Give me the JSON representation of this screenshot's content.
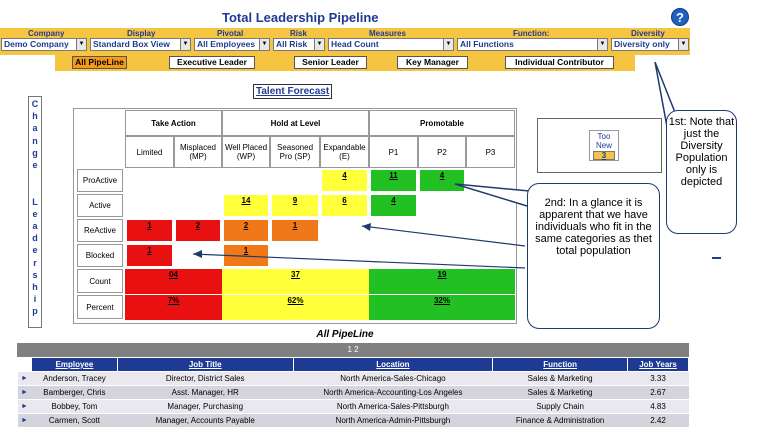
{
  "title": "Total Leadership Pipeline",
  "help_icon": "?",
  "filters": [
    {
      "label": "Company",
      "value": "Demo Company"
    },
    {
      "label": "Display",
      "value": "Standard Box View"
    },
    {
      "label": "Pivotal",
      "value": "All Employees"
    },
    {
      "label": "Risk",
      "value": "All Risk"
    },
    {
      "label": "Measures",
      "value": "Head Count"
    },
    {
      "label": "Function:",
      "value": "All Functions"
    },
    {
      "label": "Diversity",
      "value": "Diversity only"
    }
  ],
  "tabs": [
    "All PipeLine",
    "Executive Leader",
    "Senior Leader",
    "Key Manager",
    "Individual Contributor"
  ],
  "vertical_label": [
    "C",
    "h",
    "a",
    "n",
    "g",
    "e",
    "",
    "",
    "L",
    "e",
    "a",
    "d",
    "e",
    "r",
    "s",
    "h",
    "i",
    "p"
  ],
  "talent_forecast": "Talent Forecast",
  "groups": [
    "Take Action",
    "Hold at Level",
    "Promotable"
  ],
  "columns": [
    "Limited",
    "Misplaced (MP)",
    "Well Placed (WP)",
    "Seasoned Pro (SP)",
    "Expandable (E)",
    "P1",
    "P2",
    "P3"
  ],
  "rows": [
    "ProActive",
    "Active",
    "ReActive",
    "Blocked",
    "Count",
    "Percent"
  ],
  "cells": [
    [
      "",
      "",
      "",
      "",
      "4",
      "11",
      "4",
      ""
    ],
    [
      "",
      "",
      "14",
      "9",
      "6",
      "4",
      "",
      ""
    ],
    [
      "1",
      "2",
      "2",
      "1",
      "",
      "",
      "",
      ""
    ],
    [
      "1",
      "",
      "1",
      "",
      "",
      "",
      "",
      ""
    ]
  ],
  "totals": {
    "count": [
      "04",
      "37",
      "19"
    ],
    "percent": [
      "7%",
      "62%",
      "32%"
    ]
  },
  "colors": {
    "red": "#e81010",
    "orange": "#f07818",
    "yellow": "#ffff3a",
    "green": "#22c022",
    "header_blue": "#1f3a93",
    "filter_bar": "#f5c542"
  },
  "too_new": {
    "label": "Too New",
    "value": "3"
  },
  "callouts": {
    "first": "1st: Note that just the Diversity Population only is depicted",
    "second": "2nd: In a glance it is apparent that we have individuals who fit in the same categories as thet total population"
  },
  "table_title": "All PipeLine",
  "pager": "1 2",
  "table_headers": [
    "Employee",
    "Job Title",
    "Location",
    "Function",
    "Job Years"
  ],
  "table_rows": [
    [
      "Anderson, Tracey",
      "Director, District Sales",
      "North America-Sales-Chicago",
      "Sales & Marketing",
      "3.33"
    ],
    [
      "Bamberger, Chris",
      "Asst. Manager, HR",
      "North America-Accounting-Los Angeles",
      "Sales & Marketing",
      "2.67"
    ],
    [
      "Bobbey, Tom",
      "Manager, Purchasing",
      "North America-Sales-Pittsburgh",
      "Supply Chain",
      "4.83"
    ],
    [
      "Carmen, Scott",
      "Manager, Accounts Payable",
      "North America-Admin-Pittsburgh",
      "Finance & Administration",
      "2.42"
    ]
  ]
}
